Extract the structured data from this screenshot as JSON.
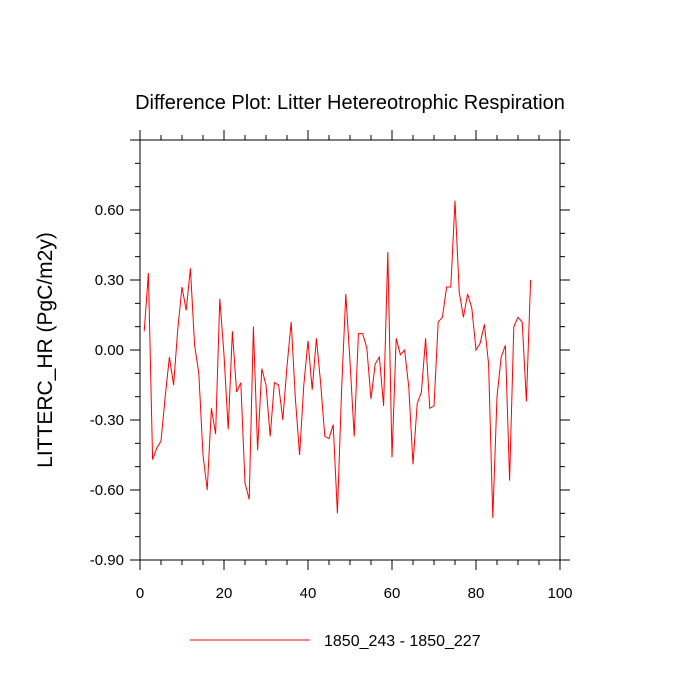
{
  "chart_data": {
    "type": "line",
    "title": "Difference Plot: Litter Hetereotrophic Respiration",
    "xlabel": "",
    "ylabel": "LITTERC_HR  (PgC/m2y)",
    "xlim": [
      0,
      100
    ],
    "ylim": [
      -0.9,
      0.9
    ],
    "x_ticks": [
      0,
      20,
      40,
      60,
      80,
      100
    ],
    "x_tick_labels": [
      "0",
      "20",
      "40",
      "60",
      "80",
      "100"
    ],
    "y_ticks": [
      -0.9,
      -0.6,
      -0.3,
      0.0,
      0.3,
      0.6
    ],
    "y_tick_labels": [
      "-0.90",
      "-0.60",
      "-0.30",
      "0.00",
      "0.30",
      "0.60"
    ],
    "legend_position": "bottom",
    "series": [
      {
        "name": "1850_243 - 1850_227",
        "color": "#ff0000",
        "x": [
          1,
          2,
          3,
          4,
          5,
          6,
          7,
          8,
          9,
          10,
          11,
          12,
          13,
          14,
          15,
          16,
          17,
          18,
          19,
          20,
          21,
          22,
          23,
          24,
          25,
          26,
          27,
          28,
          29,
          30,
          31,
          32,
          33,
          34,
          35,
          36,
          37,
          38,
          39,
          40,
          41,
          42,
          43,
          44,
          45,
          46,
          47,
          48,
          49,
          50,
          51,
          52,
          53,
          54,
          55,
          56,
          57,
          58,
          59,
          60,
          61,
          62,
          63,
          64,
          65,
          66,
          67,
          68,
          69,
          70,
          71,
          72,
          73,
          74,
          75,
          76,
          77,
          78,
          79,
          80,
          81,
          82,
          83,
          84,
          85,
          86,
          87,
          88,
          89,
          90,
          91,
          92,
          93
        ],
        "values": [
          0.08,
          0.33,
          -0.47,
          -0.42,
          -0.39,
          -0.2,
          -0.03,
          -0.15,
          0.09,
          0.27,
          0.17,
          0.35,
          0.02,
          -0.1,
          -0.45,
          -0.6,
          -0.25,
          -0.36,
          0.22,
          -0.02,
          -0.34,
          0.08,
          -0.18,
          -0.14,
          -0.57,
          -0.64,
          0.1,
          -0.43,
          -0.08,
          -0.15,
          -0.37,
          -0.14,
          -0.15,
          -0.3,
          -0.07,
          0.12,
          -0.21,
          -0.45,
          -0.15,
          0.04,
          -0.17,
          0.05,
          -0.14,
          -0.37,
          -0.38,
          -0.32,
          -0.7,
          -0.17,
          0.24,
          -0.05,
          -0.37,
          0.07,
          0.07,
          0.01,
          -0.21,
          -0.06,
          -0.03,
          -0.24,
          0.42,
          -0.46,
          0.05,
          -0.02,
          0.0,
          -0.16,
          -0.49,
          -0.23,
          -0.18,
          0.05,
          -0.25,
          -0.24,
          0.12,
          0.14,
          0.27,
          0.27,
          0.64,
          0.25,
          0.14,
          0.24,
          0.18,
          0.0,
          0.03,
          0.11,
          -0.06,
          -0.72,
          -0.2,
          -0.03,
          0.02,
          -0.56,
          0.1,
          0.14,
          0.12,
          -0.22,
          0.3
        ]
      }
    ]
  },
  "legend": {
    "label": "1850_243 - 1850_227"
  }
}
